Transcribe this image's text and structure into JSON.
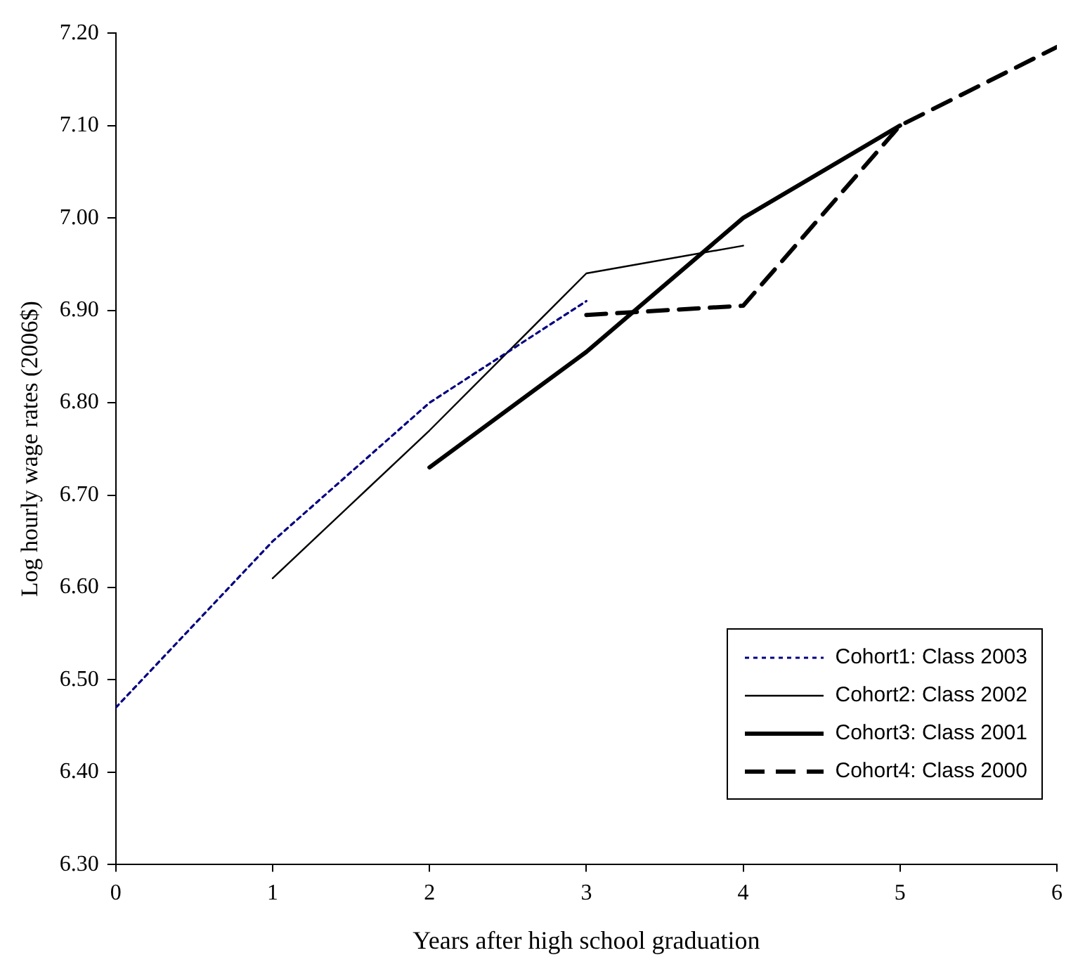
{
  "chart_data": {
    "type": "line",
    "xlabel": "Years after high school graduation",
    "ylabel": "Log hourly wage rates (2006$)",
    "xlim": [
      0,
      6
    ],
    "xticks": [
      0,
      1,
      2,
      3,
      4,
      5,
      6
    ],
    "ylim": [
      6.3,
      7.2
    ],
    "yticks": [
      {
        "value": 6.3,
        "label": "6.30"
      },
      {
        "value": 6.4,
        "label": "6.40"
      },
      {
        "value": 6.5,
        "label": "6.50"
      },
      {
        "value": 6.6,
        "label": "6.60"
      },
      {
        "value": 6.7,
        "label": "6.70"
      },
      {
        "value": 6.8,
        "label": "6.80"
      },
      {
        "value": 6.9,
        "label": "6.90"
      },
      {
        "value": 7.0,
        "label": "7.00"
      },
      {
        "value": 7.1,
        "label": "7.10"
      },
      {
        "value": 7.2,
        "label": "7.20"
      }
    ],
    "legend": "bottom right",
    "marker": "none",
    "series": [
      {
        "name": "Cohort1: Class 2003",
        "color": "#000080",
        "line_style": "dotted",
        "x": [
          0,
          1,
          2,
          3
        ],
        "values": [
          6.47,
          6.65,
          6.8,
          6.91
        ]
      },
      {
        "name": "Cohort2: Class 2002",
        "color": "#000000",
        "line_style": "solid",
        "x": [
          1,
          2,
          3,
          4
        ],
        "values": [
          6.61,
          6.77,
          6.94,
          6.97
        ]
      },
      {
        "name": "Cohort3: Class 2001",
        "color": "#000000",
        "line_style": "solid",
        "x": [
          2,
          3,
          4,
          5
        ],
        "values": [
          6.73,
          6.855,
          7.0,
          7.1
        ]
      },
      {
        "name": "Cohort4: Class 2000",
        "color": "#000000",
        "line_style": "dashed",
        "x": [
          3,
          4,
          5,
          6
        ],
        "values": [
          6.895,
          6.905,
          7.1,
          7.185
        ]
      }
    ]
  }
}
